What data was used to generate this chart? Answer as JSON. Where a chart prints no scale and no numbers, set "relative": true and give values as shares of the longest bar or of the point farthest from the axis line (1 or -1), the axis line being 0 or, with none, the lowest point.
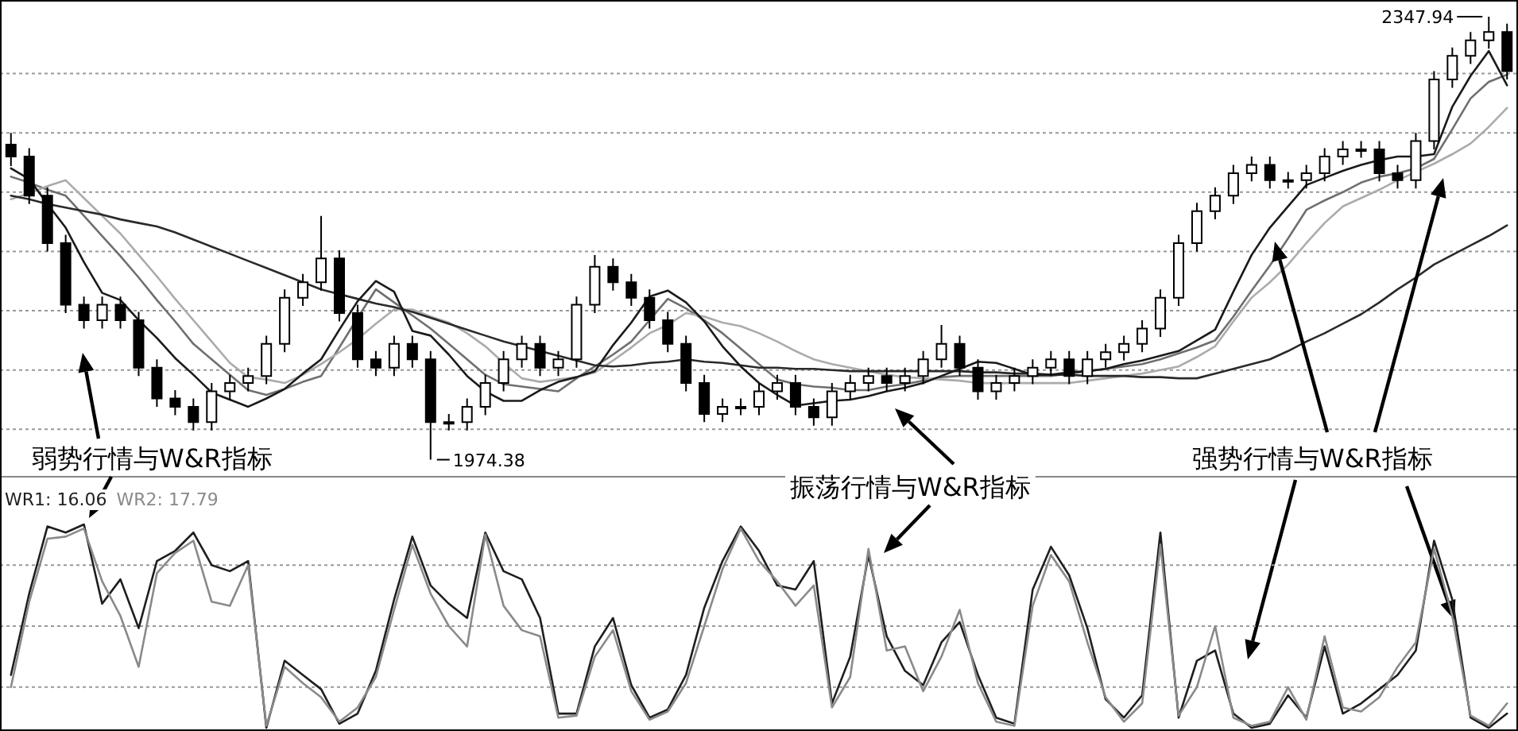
{
  "chart_data": [
    {
      "type": "candlestick",
      "color": "#000000",
      "grid": "y",
      "ylim": [
        1960,
        2362
      ],
      "yticks": [
        {
          "value": 2000,
          "label": null
        },
        {
          "value": 2050,
          "label": null
        },
        {
          "value": 2100,
          "label": null
        },
        {
          "value": 2150,
          "label": null
        },
        {
          "value": 2200,
          "label": null
        },
        {
          "value": 2250,
          "label": null
        },
        {
          "value": 2300,
          "label": null
        }
      ],
      "categories": [
        null,
        null,
        null,
        null,
        null,
        null,
        null,
        null,
        null,
        null,
        null,
        null,
        null,
        null,
        null,
        null,
        null,
        null,
        null,
        null,
        null,
        null,
        null,
        null,
        null,
        null,
        null,
        null,
        null,
        null,
        null,
        null,
        null,
        null,
        null,
        null,
        null,
        null,
        null,
        null,
        null,
        null,
        null,
        null,
        null,
        null,
        null,
        null,
        null,
        null,
        null,
        null,
        null,
        null,
        null,
        null,
        null,
        null,
        null,
        null,
        null,
        null,
        null,
        null,
        null,
        null,
        null,
        null,
        null,
        null,
        null,
        null,
        null,
        null,
        null,
        null,
        null,
        null,
        null,
        null,
        null,
        null,
        null
      ],
      "ohlc": [
        [
          2240,
          2250,
          2222,
          2230
        ],
        [
          2230,
          2237,
          2190,
          2197
        ],
        [
          2197,
          2204,
          2150,
          2157
        ],
        [
          2157,
          2164,
          2098,
          2105
        ],
        [
          2105,
          2112,
          2085,
          2092
        ],
        [
          2092,
          2112,
          2085,
          2105
        ],
        [
          2105,
          2112,
          2085,
          2092
        ],
        [
          2092,
          2099,
          2045,
          2052
        ],
        [
          2052,
          2059,
          2019,
          2026
        ],
        [
          2026,
          2033,
          2012,
          2019
        ],
        [
          2019,
          2026,
          1999,
          2006
        ],
        [
          2006,
          2039,
          1999,
          2032
        ],
        [
          2032,
          2046,
          2025,
          2039
        ],
        [
          2039,
          2052,
          2032,
          2045
        ],
        [
          2045,
          2079,
          2038,
          2072
        ],
        [
          2072,
          2118,
          2065,
          2111
        ],
        [
          2111,
          2131,
          2104,
          2124
        ],
        [
          2124,
          2180,
          2117,
          2144
        ],
        [
          2144,
          2151,
          2091,
          2098
        ],
        [
          2098,
          2105,
          2052,
          2059
        ],
        [
          2059,
          2066,
          2045,
          2052
        ],
        [
          2052,
          2079,
          2045,
          2072
        ],
        [
          2072,
          2079,
          2052,
          2059
        ],
        [
          2059,
          2066,
          1974.38,
          2006
        ],
        [
          2006,
          2013,
          1999,
          2006
        ],
        [
          2006,
          2026,
          1999,
          2019
        ],
        [
          2019,
          2046,
          2012,
          2039
        ],
        [
          2039,
          2066,
          2032,
          2059
        ],
        [
          2059,
          2079,
          2052,
          2072
        ],
        [
          2072,
          2079,
          2045,
          2052
        ],
        [
          2052,
          2066,
          2045,
          2059
        ],
        [
          2059,
          2112,
          2052,
          2105
        ],
        [
          2105,
          2147,
          2098,
          2137
        ],
        [
          2137,
          2144,
          2117,
          2124
        ],
        [
          2124,
          2131,
          2104,
          2111
        ],
        [
          2111,
          2118,
          2085,
          2092
        ],
        [
          2092,
          2099,
          2065,
          2072
        ],
        [
          2072,
          2079,
          2032,
          2039
        ],
        [
          2039,
          2046,
          2006,
          2013
        ],
        [
          2013,
          2026,
          2006,
          2019
        ],
        [
          2019,
          2026,
          2012,
          2019
        ],
        [
          2019,
          2039,
          2012,
          2032
        ],
        [
          2032,
          2046,
          2025,
          2039
        ],
        [
          2039,
          2046,
          2012,
          2019
        ],
        [
          2019,
          2026,
          2003,
          2010
        ],
        [
          2010,
          2039,
          2003,
          2032
        ],
        [
          2032,
          2046,
          2025,
          2039
        ],
        [
          2039,
          2052,
          2032,
          2045
        ],
        [
          2045,
          2052,
          2032,
          2039
        ],
        [
          2039,
          2052,
          2032,
          2045
        ],
        [
          2045,
          2066,
          2038,
          2059
        ],
        [
          2059,
          2088,
          2052,
          2072
        ],
        [
          2072,
          2079,
          2045,
          2052
        ],
        [
          2052,
          2059,
          2025,
          2032
        ],
        [
          2032,
          2046,
          2025,
          2039
        ],
        [
          2039,
          2052,
          2032,
          2045
        ],
        [
          2045,
          2059,
          2038,
          2052
        ],
        [
          2052,
          2066,
          2045,
          2059
        ],
        [
          2059,
          2066,
          2038,
          2045
        ],
        [
          2045,
          2066,
          2038,
          2059
        ],
        [
          2059,
          2072,
          2052,
          2065
        ],
        [
          2065,
          2079,
          2058,
          2072
        ],
        [
          2072,
          2092,
          2065,
          2085
        ],
        [
          2085,
          2118,
          2078,
          2111
        ],
        [
          2111,
          2164,
          2104,
          2157
        ],
        [
          2157,
          2191,
          2150,
          2184
        ],
        [
          2184,
          2204,
          2177,
          2197
        ],
        [
          2197,
          2223,
          2190,
          2216
        ],
        [
          2216,
          2230,
          2209,
          2223
        ],
        [
          2223,
          2230,
          2203,
          2210
        ],
        [
          2210,
          2217,
          2203,
          2210
        ],
        [
          2210,
          2223,
          2203,
          2216
        ],
        [
          2216,
          2237,
          2209,
          2230
        ],
        [
          2230,
          2243,
          2223,
          2236
        ],
        [
          2236,
          2243,
          2229,
          2236
        ],
        [
          2236,
          2243,
          2209,
          2216
        ],
        [
          2216,
          2223,
          2203,
          2210
        ],
        [
          2210,
          2250,
          2203,
          2243
        ],
        [
          2243,
          2302,
          2236,
          2295
        ],
        [
          2295,
          2322,
          2288,
          2315
        ],
        [
          2315,
          2335,
          2308,
          2328
        ],
        [
          2328,
          2347.94,
          2321,
          2335
        ],
        [
          2335,
          2342,
          2295,
          2302
        ]
      ],
      "series": [
        {
          "type": "line",
          "color": "#6f6f6f",
          "values": [
            2213,
            2208,
            2202,
            2197,
            2180,
            2163,
            2146,
            2128,
            2109,
            2091,
            2072,
            2059,
            2046,
            2033,
            2029,
            2034,
            2040,
            2045,
            2069,
            2094,
            2118,
            2107,
            2096,
            2085,
            2072,
            2059,
            2046,
            2038,
            2036,
            2034,
            2032,
            2043,
            2053,
            2063,
            2074,
            2092,
            2110,
            2102,
            2092,
            2081,
            2068,
            2055,
            2042,
            2038,
            2036,
            2035,
            2033,
            2033,
            2036,
            2038,
            2041,
            2044,
            2045,
            2045,
            2045,
            2045,
            2045,
            2045,
            2047,
            2049,
            2051,
            2053,
            2055,
            2059,
            2064,
            2069,
            2075,
            2095,
            2117,
            2138,
            2161,
            2185,
            2193,
            2200,
            2208,
            2213,
            2216,
            2220,
            2228,
            2253,
            2279,
            2293,
            2299
          ]
        },
        {
          "type": "line",
          "color": "#ababab",
          "values": [
            2194,
            2199,
            2205,
            2210,
            2195,
            2180,
            2165,
            2147,
            2129,
            2110,
            2092,
            2074,
            2056,
            2044,
            2042,
            2039,
            2046,
            2055,
            2065,
            2076,
            2089,
            2101,
            2101,
            2095,
            2090,
            2081,
            2070,
            2056,
            2043,
            2040,
            2042,
            2044,
            2048,
            2058,
            2069,
            2081,
            2088,
            2098,
            2095,
            2090,
            2087,
            2081,
            2074,
            2066,
            2059,
            2055,
            2052,
            2049,
            2046,
            2044,
            2043,
            2042,
            2041,
            2039,
            2039,
            2039,
            2039,
            2039,
            2039,
            2041,
            2043,
            2045,
            2047,
            2050,
            2053,
            2061,
            2070,
            2091,
            2111,
            2124,
            2139,
            2157,
            2174,
            2188,
            2195,
            2202,
            2210,
            2217,
            2224,
            2232,
            2241,
            2255,
            2271
          ]
        },
        {
          "type": "line",
          "color": "#2a2a2a",
          "values": [
            2197,
            2194,
            2190,
            2187,
            2184,
            2181,
            2177,
            2174,
            2171,
            2166,
            2160,
            2154,
            2148,
            2142,
            2136,
            2130,
            2124,
            2118,
            2114,
            2110,
            2106,
            2103,
            2099,
            2094,
            2089,
            2084,
            2079,
            2074,
            2070,
            2066,
            2062,
            2058,
            2054,
            2053,
            2054,
            2056,
            2057,
            2059,
            2057,
            2056,
            2054,
            2052,
            2052,
            2051,
            2051,
            2050,
            2049,
            2049,
            2049,
            2049,
            2049,
            2049,
            2049,
            2048,
            2048,
            2047,
            2047,
            2046,
            2046,
            2045,
            2045,
            2045,
            2044,
            2044,
            2043,
            2043,
            2047,
            2051,
            2055,
            2059,
            2066,
            2074,
            2081,
            2089,
            2097,
            2107,
            2118,
            2128,
            2139,
            2147,
            2155,
            2163,
            2172
          ]
        },
        {
          "type": "line",
          "color": "#1a1a1a",
          "values": [
            2220,
            2211,
            2190,
            2170,
            2141,
            2115,
            2109,
            2092,
            2077,
            2060,
            2046,
            2031,
            2025,
            2019,
            2026,
            2034,
            2047,
            2059,
            2084,
            2108,
            2125,
            2116,
            2083,
            2079,
            2063,
            2045,
            2032,
            2024,
            2024,
            2033,
            2040,
            2044,
            2049,
            2071,
            2090,
            2112,
            2117,
            2107,
            2091,
            2070,
            2053,
            2039,
            2029,
            2020,
            2022,
            2024,
            2025,
            2028,
            2032,
            2035,
            2039,
            2045,
            2051,
            2057,
            2056,
            2051,
            2046,
            2046,
            2048,
            2049,
            2051,
            2055,
            2058,
            2062,
            2066,
            2075,
            2084,
            2116,
            2147,
            2170,
            2188,
            2206,
            2212,
            2218,
            2223,
            2227,
            2230,
            2230,
            2232,
            2272,
            2298,
            2319,
            2290
          ]
        }
      ],
      "annotations": [
        "2347.94",
        "1974.38",
        "弱势行情与W&R指标",
        "振荡行情与W&R指标",
        "强势行情与W&R指标"
      ]
    },
    {
      "type": "line",
      "relative": true,
      "grid": "y",
      "legend": "top left",
      "categories": [
        null,
        null,
        null,
        null,
        null,
        null,
        null,
        null,
        null,
        null,
        null,
        null,
        null,
        null,
        null,
        null,
        null,
        null,
        null,
        null,
        null,
        null,
        null,
        null,
        null,
        null,
        null,
        null,
        null,
        null,
        null,
        null,
        null,
        null,
        null,
        null,
        null,
        null,
        null,
        null,
        null,
        null,
        null,
        null,
        null,
        null,
        null,
        null,
        null,
        null,
        null,
        null,
        null,
        null,
        null,
        null,
        null,
        null,
        null,
        null,
        null,
        null,
        null,
        null,
        null,
        null,
        null,
        null,
        null,
        null,
        null,
        null,
        null,
        null,
        null,
        null,
        null,
        null,
        null,
        null,
        null,
        null,
        null
      ],
      "series": [
        {
          "name": "WR1: 16.06",
          "color": "#1e1e1e",
          "values": [
            0.26,
            0.66,
            0.99,
            0.96,
            1,
            0.61,
            0.73,
            0.49,
            0.82,
            0.87,
            0.96,
            0.8,
            0.77,
            0.82,
            0,
            0.33,
            0.26,
            0.19,
            0.02,
            0.07,
            0.28,
            0.63,
            0.94,
            0.7,
            0.61,
            0.54,
            0.96,
            0.77,
            0.73,
            0.54,
            0.07,
            0.07,
            0.4,
            0.54,
            0.21,
            0.05,
            0.09,
            0.26,
            0.59,
            0.82,
            0.99,
            0.87,
            0.7,
            0.68,
            0.82,
            0.12,
            0.35,
            0.85,
            0.45,
            0.28,
            0.21,
            0.42,
            0.52,
            0.26,
            0.05,
            0.02,
            0.68,
            0.89,
            0.75,
            0.49,
            0.14,
            0.05,
            0.16,
            0.96,
            0.05,
            0.33,
            0.38,
            0.07,
            0,
            0.02,
            0.16,
            0.05,
            0.4,
            0.07,
            0.12,
            0.19,
            0.26,
            0.38,
            0.92,
            0.63,
            0.05,
            0,
            0.07
          ]
        },
        {
          "name": "WR2: 17.79",
          "color": "#8a8a8a",
          "values": [
            0.2,
            0.62,
            0.93,
            0.94,
            0.98,
            0.72,
            0.55,
            0.3,
            0.76,
            0.86,
            0.92,
            0.62,
            0.6,
            0.8,
            0.01,
            0.3,
            0.22,
            0.15,
            0.03,
            0.1,
            0.25,
            0.58,
            0.9,
            0.66,
            0.5,
            0.4,
            0.95,
            0.6,
            0.48,
            0.45,
            0.05,
            0.06,
            0.35,
            0.48,
            0.18,
            0.04,
            0.08,
            0.22,
            0.5,
            0.78,
            0.98,
            0.82,
            0.72,
            0.6,
            0.7,
            0.1,
            0.25,
            0.88,
            0.38,
            0.4,
            0.18,
            0.35,
            0.58,
            0.22,
            0.03,
            0.01,
            0.6,
            0.85,
            0.72,
            0.42,
            0.15,
            0.03,
            0.12,
            0.9,
            0.06,
            0.2,
            0.5,
            0.05,
            0.01,
            0.03,
            0.2,
            0.04,
            0.45,
            0.1,
            0.08,
            0.15,
            0.3,
            0.42,
            0.88,
            0.55,
            0.06,
            0.01,
            0.12
          ]
        }
      ]
    }
  ]
}
